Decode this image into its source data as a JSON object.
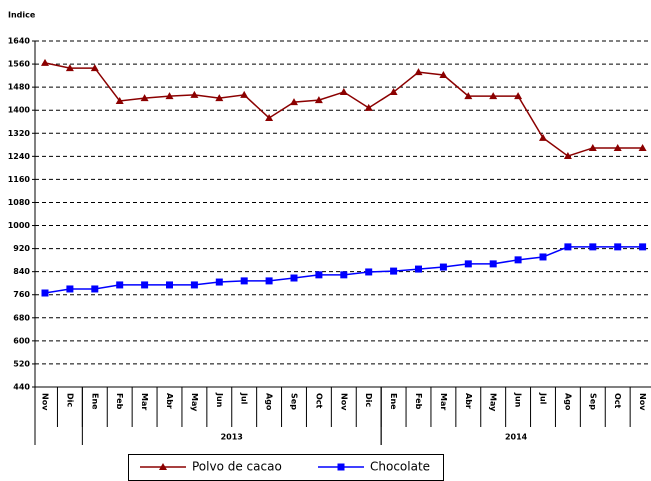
{
  "chart_data": {
    "type": "line",
    "y_label": "Indice",
    "categories": [
      "Nov",
      "Dic",
      "Ene",
      "Feb",
      "Mar",
      "Abr",
      "May",
      "Jun",
      "Jul",
      "Ago",
      "Sep",
      "Oct",
      "Nov",
      "Dic",
      "Ene",
      "Feb",
      "Mar",
      "Abr",
      "May",
      "Jun",
      "Jul",
      "Ago",
      "Sep",
      "Oct",
      "Nov"
    ],
    "x_groups": [
      {
        "label": "2013",
        "from": 2,
        "to": 13
      },
      {
        "label": "2014",
        "from": 14,
        "to": 24
      }
    ],
    "series": [
      {
        "name": "Polvo de cacao",
        "color": "#8b0000",
        "marker": "triangle",
        "values": [
          1564,
          1546,
          1546,
          1432,
          1442,
          1449,
          1453,
          1442,
          1453,
          1373,
          1428,
          1435,
          1463,
          1408,
          1463,
          1532,
          1522,
          1449,
          1449,
          1449,
          1304,
          1241,
          1269,
          1269,
          1269
        ]
      },
      {
        "name": "Chocolate",
        "color": "#0000ff",
        "marker": "square",
        "values": [
          766,
          780,
          780,
          794,
          794,
          794,
          794,
          804,
          808,
          808,
          818,
          829,
          829,
          839,
          842,
          849,
          856,
          867,
          867,
          881,
          891,
          926,
          926,
          926,
          926
        ]
      }
    ],
    "ylim": [
      440,
      1640
    ],
    "yticks": [
      440,
      520,
      600,
      680,
      760,
      840,
      920,
      1000,
      1080,
      1160,
      1240,
      1320,
      1400,
      1480,
      1560,
      1640
    ],
    "grid": true,
    "legend": "bottom"
  }
}
